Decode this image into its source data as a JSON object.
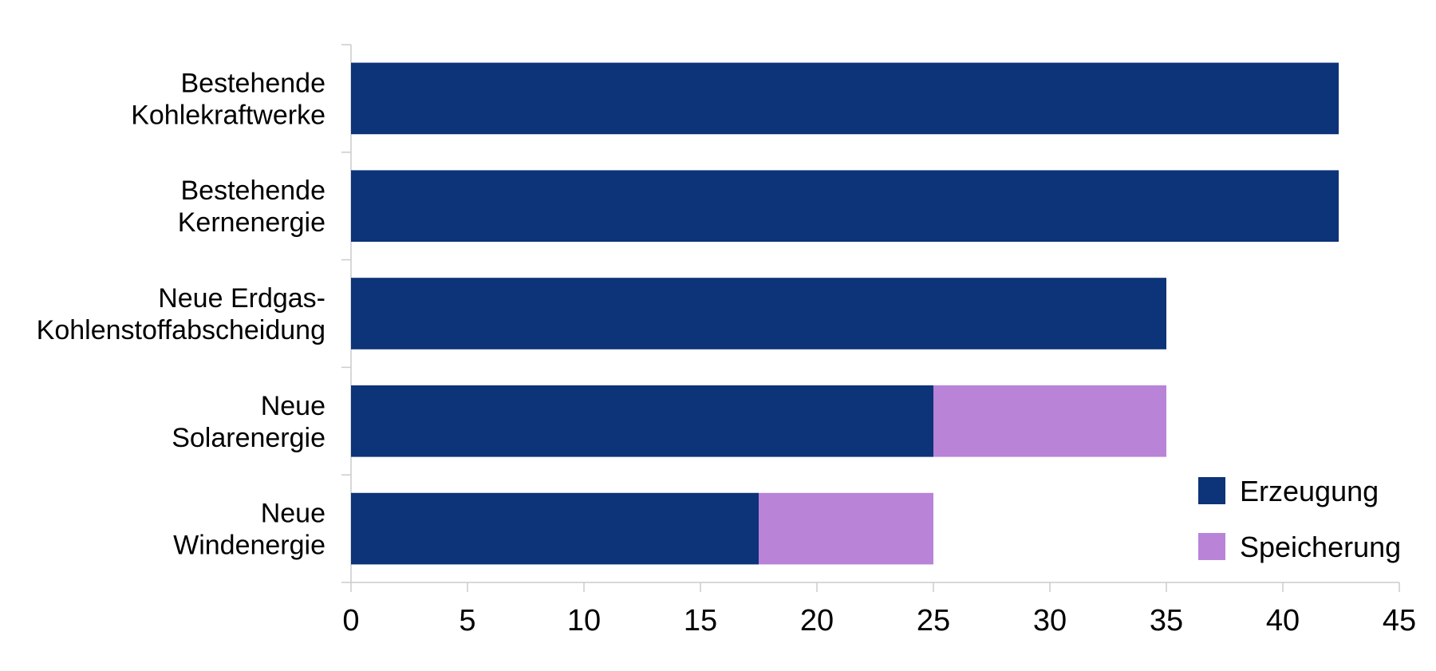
{
  "chart_data": {
    "type": "bar",
    "orientation": "horizontal",
    "stacked": true,
    "title": "",
    "xlabel": "",
    "ylabel": "",
    "categories": [
      [
        "Bestehende",
        "Kohlekraftwerke"
      ],
      [
        "Bestehende",
        "Kernenergie"
      ],
      [
        "Neue Erdgas-",
        "Kohlenstoffabscheidung"
      ],
      [
        "Neue",
        "Solarenergie"
      ],
      [
        "Neue",
        "Windenergie"
      ]
    ],
    "series": [
      {
        "name": "Erzeugung",
        "color": "#0d3378",
        "values": [
          42.4,
          42.4,
          35,
          25,
          17.5
        ]
      },
      {
        "name": "Speicherung",
        "color": "#b983d8",
        "values": [
          0,
          0,
          0,
          10,
          7.5
        ]
      }
    ],
    "xlim": [
      0,
      45
    ],
    "xticks": [
      0,
      5,
      10,
      15,
      20,
      25,
      30,
      35,
      40,
      45
    ],
    "grid": false,
    "legend_position": "bottom-right"
  }
}
